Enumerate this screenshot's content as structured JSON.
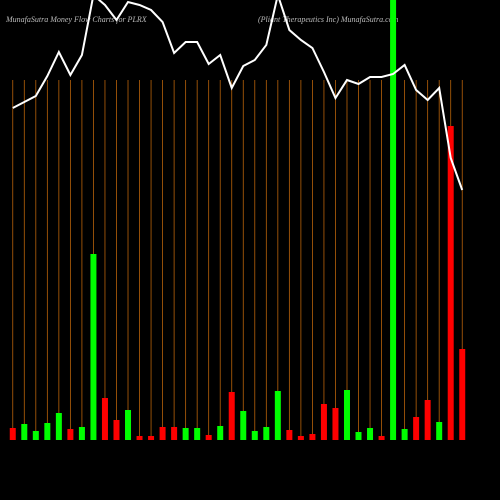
{
  "chart_data": {
    "type": "bar",
    "title": "MunafaSutra  Money Flow  Charts for PLRX",
    "subtitle": "(Pliant Therapeutics Inc) MunafaSutra.com",
    "categories": [
      null,
      null,
      null,
      null,
      null,
      null,
      null,
      null,
      null,
      null,
      null,
      null,
      null,
      null,
      null,
      null,
      null,
      null,
      null,
      null,
      null,
      null,
      null,
      null,
      null,
      null,
      null,
      null,
      null,
      null,
      null,
      null,
      null,
      null,
      null,
      null,
      null,
      null,
      null,
      null
    ],
    "values": [
      12,
      16,
      9,
      17,
      27,
      11,
      13,
      186,
      42,
      20,
      30,
      4,
      4,
      13,
      13,
      12,
      12,
      5,
      14,
      48,
      29,
      9,
      13,
      49,
      10,
      4,
      6,
      36,
      32,
      50,
      8,
      12,
      4,
      440,
      11,
      23,
      40,
      18,
      314,
      91
    ],
    "colors": [
      "#ff0000",
      "#00ff00",
      "#00ff00",
      "#00ff00",
      "#00ff00",
      "#ff0000",
      "#00ff00",
      "#00ff00",
      "#ff0000",
      "#ff0000",
      "#00ff00",
      "#ff0000",
      "#ff0000",
      "#ff0000",
      "#ff0000",
      "#00ff00",
      "#00ff00",
      "#ff0000",
      "#00ff00",
      "#ff0000",
      "#00ff00",
      "#00ff00",
      "#00ff00",
      "#00ff00",
      "#ff0000",
      "#ff0000",
      "#ff0000",
      "#ff0000",
      "#ff0000",
      "#00ff00",
      "#00ff00",
      "#00ff00",
      "#ff0000",
      "#00ff00",
      "#00ff00",
      "#ff0000",
      "#ff0000",
      "#00ff00",
      "#ff0000",
      "#ff0000"
    ],
    "ylim": [
      0,
      440
    ],
    "price": [
      92,
      98,
      104,
      124,
      148,
      125,
      145,
      205,
      195,
      180,
      198,
      195,
      190,
      178,
      147,
      158,
      158,
      136,
      145,
      112,
      134,
      140,
      155,
      205,
      170,
      160,
      152,
      128,
      102,
      120,
      116,
      123,
      123,
      126,
      135,
      110,
      100,
      112,
      42,
      10
    ],
    "price_color": "#ffffff",
    "plim": [
      0,
      200
    ],
    "grid_color": "#b8620a"
  }
}
